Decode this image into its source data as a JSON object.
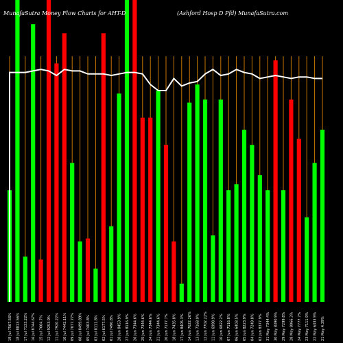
{
  "header": {
    "left": "MunafaSutra  Money Flow  Charts for AHT-D",
    "right": "(Ashford Hosp D Pfd) MunafaSutra.com"
  },
  "colors": {
    "background": "#000000",
    "up": "#00ff00",
    "down": "#ff0000",
    "grid": "#c87800",
    "line": "#ffffff",
    "label": "#ffffff"
  },
  "chart_data": {
    "type": "bar",
    "title": "",
    "xlabel": "",
    "ylabel": "",
    "ylim": [
      0,
      100
    ],
    "grid": true,
    "categories": [
      "19 Jul 7567.56%",
      "18 Jul 8813.56%",
      "17 Jul 7133.22%",
      "16 Jul 8744.67%",
      "15 Jul 7664.7%",
      "12 Jul 9253.9%",
      "11 Jul 7920.22%",
      "10 Jul 7442.11%",
      "09 Jul 7077.77%",
      "08 Jul 8499.89%",
      "05 Jul 7403.8%",
      "03 Jul 8111.8%",
      "02 Jul 6177.5%",
      "01 Jul 7490.8%",
      "28 Jun 8453.9%",
      "27 Jun 8116.9%",
      "26 Jun 7344.6%",
      "25 Jun 7344.6%",
      "24 Jun 7344.6%",
      "21 Jun 7344.6%",
      "20 Jun 7177.7%",
      "18 Jun 7435.8%",
      "17 Jun 8405.3%",
      "14 Jun 7622.26%",
      "13 Jun 7168.9%",
      "12 Jun 7702.22%",
      "11 Jun 6998.9%",
      "10 Jun 6822.2%",
      "07 Jun 7116.8%",
      "06 Jun 6403.5%",
      "05 Jun 8223.9%",
      "04 Jun 7249.8%",
      "03 Jun 8377.9%",
      "31 May 7344.4%",
      "30 May 8390.9%",
      "29 May 7299.8%",
      "28 May 8066.3%",
      "24 May 7777.7%",
      "23 May 7111.9%",
      "22 May 6333.9%",
      "21 May 4.39%"
    ],
    "values": [
      37,
      100,
      15,
      92,
      14,
      100,
      79,
      89,
      46,
      20,
      21,
      11,
      89,
      25,
      69,
      100,
      100,
      61,
      61,
      70,
      52,
      20,
      6,
      66,
      72,
      67,
      22,
      67,
      37,
      39,
      57,
      52,
      42,
      37,
      80,
      37,
      67,
      54,
      28,
      46,
      57
    ],
    "directions": [
      "up",
      "up",
      "up",
      "up",
      "down",
      "down",
      "down",
      "down",
      "up",
      "up",
      "down",
      "up",
      "down",
      "up",
      "up",
      "up",
      "down",
      "down",
      "down",
      "up",
      "down",
      "down",
      "up",
      "up",
      "up",
      "up",
      "up",
      "up",
      "up",
      "up",
      "up",
      "up",
      "up",
      "up",
      "down",
      "up",
      "down",
      "down",
      "up",
      "up",
      "up"
    ],
    "average_line": [
      76,
      76,
      76,
      76.5,
      77,
      76.5,
      75,
      77,
      76.5,
      76.5,
      75.5,
      75.5,
      75.5,
      75,
      75.5,
      76,
      76,
      75.5,
      72,
      70,
      70,
      74,
      71.5,
      72.5,
      73,
      75.5,
      77,
      75,
      75.5,
      77,
      76,
      75.5,
      74,
      74.5,
      75,
      74.5,
      74,
      74.5,
      74.5,
      74,
      74
    ]
  }
}
